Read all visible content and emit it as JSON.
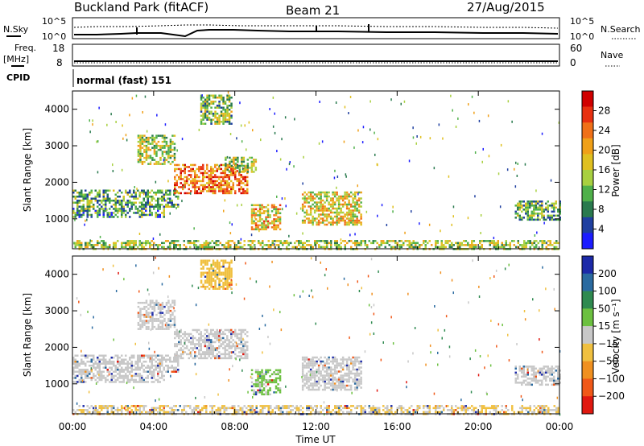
{
  "header": {
    "station": "Buckland Park (fitACF)",
    "beam": "Beam 21",
    "date": "27/Aug/2015"
  },
  "noise_panel": {
    "left_label": "N.Sky",
    "right_label": "N.Search",
    "ticks_left": [
      "10^5",
      "10^0"
    ],
    "ticks_right": [
      "10^5",
      "10^0"
    ]
  },
  "freq_panel": {
    "left_label_top": "Freq.",
    "left_label_unit": "[MHz]",
    "right_label": "Nave",
    "ticks_left": [
      "18",
      "8"
    ],
    "ticks_right": [
      "60",
      "0"
    ],
    "freq_mhz": 8.6
  },
  "cpid_panel": {
    "label": "CPID",
    "mode": "normal (fast) 151"
  },
  "x_axis": {
    "label": "Time UT",
    "ticks": [
      "00:00",
      "04:00",
      "08:00",
      "12:00",
      "16:00",
      "20:00",
      "00:00"
    ]
  },
  "power_panel": {
    "y_label": "Slant Range [km]",
    "y_ticks": [
      "4000",
      "3000",
      "2000",
      "1000"
    ],
    "colorbar_label": "Power [dB]",
    "colorbar_ticks": [
      "28",
      "24",
      "20",
      "16",
      "12",
      "8",
      "4"
    ],
    "colors": [
      "#1c1cff",
      "#1f3fa0",
      "#2a7a4e",
      "#4fb04a",
      "#a8d040",
      "#e0c020",
      "#f0a018",
      "#f07018",
      "#e83010",
      "#d00000"
    ]
  },
  "velocity_panel": {
    "y_label": "Slant Range [km]",
    "y_ticks": [
      "4000",
      "3000",
      "2000",
      "1000"
    ],
    "colorbar_label": "Velocity [m s⁻¹]",
    "colorbar_ticks": [
      "200",
      "100",
      "50",
      "15",
      "−15",
      "−50",
      "−100",
      "−200"
    ],
    "colors": [
      "#1c2aa8",
      "#2a6aa0",
      "#2f8a50",
      "#6cc040",
      "#c8c8c8",
      "#f0c040",
      "#f09020",
      "#f05818",
      "#e01810"
    ]
  },
  "chart_data": [
    {
      "type": "heatmap",
      "title": "Power",
      "x_range_hours": [
        0,
        24
      ],
      "y_range_km": [
        180,
        4500
      ],
      "value_label": "Power [dB]",
      "value_range": [
        0,
        30
      ],
      "regions": [
        {
          "t_start": 0.0,
          "t_end": 5.2,
          "r_min": 1350,
          "r_max": 1800,
          "power_db": 10
        },
        {
          "t_start": 0.0,
          "t_end": 4.5,
          "r_min": 1050,
          "r_max": 1300,
          "power_db": 9
        },
        {
          "t_start": 3.2,
          "t_end": 5.0,
          "r_min": 2500,
          "r_max": 3300,
          "power_db": 14
        },
        {
          "t_start": 5.0,
          "t_end": 8.6,
          "r_min": 1700,
          "r_max": 2500,
          "power_db": 22
        },
        {
          "t_start": 6.3,
          "t_end": 7.8,
          "r_min": 3600,
          "r_max": 4400,
          "power_db": 12
        },
        {
          "t_start": 7.5,
          "t_end": 9.0,
          "r_min": 2300,
          "r_max": 2700,
          "power_db": 14
        },
        {
          "t_start": 8.8,
          "t_end": 10.2,
          "r_min": 700,
          "r_max": 1400,
          "power_db": 18
        },
        {
          "t_start": 11.3,
          "t_end": 14.2,
          "r_min": 850,
          "r_max": 1750,
          "power_db": 16
        },
        {
          "t_start": 21.8,
          "t_end": 24.0,
          "r_min": 1000,
          "r_max": 1500,
          "power_db": 10
        },
        {
          "t_start": 0.0,
          "t_end": 24.0,
          "r_min": 180,
          "r_max": 420,
          "power_db": 14
        }
      ]
    },
    {
      "type": "heatmap",
      "title": "Velocity",
      "x_range_hours": [
        0,
        24
      ],
      "y_range_km": [
        180,
        4500
      ],
      "value_label": "Velocity [m s⁻¹]",
      "value_range": [
        -250,
        250
      ],
      "regions": [
        {
          "t_start": 0.0,
          "t_end": 5.2,
          "r_min": 1350,
          "r_max": 1800,
          "velocity": 0
        },
        {
          "t_start": 0.0,
          "t_end": 4.5,
          "r_min": 1050,
          "r_max": 1300,
          "velocity": 0
        },
        {
          "t_start": 3.2,
          "t_end": 5.0,
          "r_min": 2500,
          "r_max": 3300,
          "velocity": 0
        },
        {
          "t_start": 5.0,
          "t_end": 8.6,
          "r_min": 1700,
          "r_max": 2500,
          "velocity": 0
        },
        {
          "t_start": 6.3,
          "t_end": 7.8,
          "r_min": 3600,
          "r_max": 4400,
          "velocity": -60
        },
        {
          "t_start": 8.8,
          "t_end": 10.2,
          "r_min": 700,
          "r_max": 1400,
          "velocity": 40
        },
        {
          "t_start": 11.3,
          "t_end": 14.2,
          "r_min": 850,
          "r_max": 1750,
          "velocity": 0
        },
        {
          "t_start": 21.8,
          "t_end": 24.0,
          "r_min": 1000,
          "r_max": 1500,
          "velocity": 0
        },
        {
          "t_start": 0.0,
          "t_end": 24.0,
          "r_min": 180,
          "r_max": 420,
          "velocity": -30
        }
      ]
    }
  ]
}
